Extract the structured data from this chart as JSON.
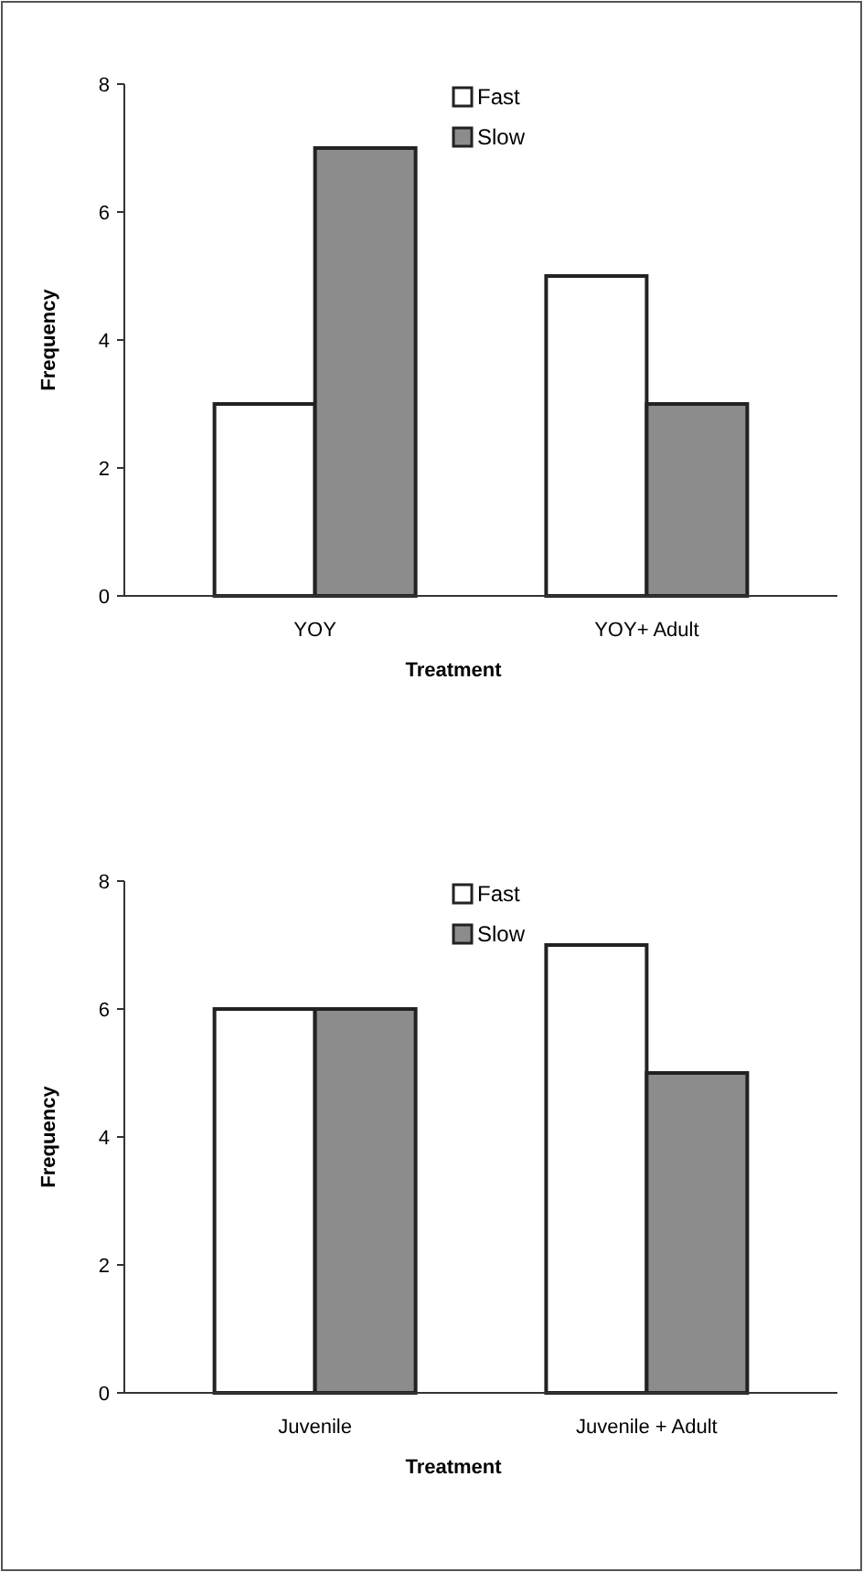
{
  "chart_data": [
    {
      "type": "bar",
      "xlabel": "Treatment",
      "ylabel": "Frequency",
      "categories": [
        "YOY",
        "YOY+ Adult"
      ],
      "series": [
        {
          "name": "Fast",
          "color": "#ffffff",
          "values": [
            3,
            5
          ]
        },
        {
          "name": "Slow",
          "color": "#8c8c8c",
          "values": [
            7,
            3
          ]
        }
      ],
      "ylim": [
        0,
        8
      ],
      "yticks": [
        0,
        2,
        4,
        6,
        8
      ],
      "grid": false,
      "legend": "top"
    },
    {
      "type": "bar",
      "xlabel": "Treatment",
      "ylabel": "Frequency",
      "categories": [
        "Juvenile",
        "Juvenile + Adult"
      ],
      "series": [
        {
          "name": "Fast",
          "color": "#ffffff",
          "values": [
            6,
            7
          ]
        },
        {
          "name": "Slow",
          "color": "#8c8c8c",
          "values": [
            6,
            5
          ]
        }
      ],
      "ylim": [
        0,
        8
      ],
      "yticks": [
        0,
        2,
        4,
        6,
        8
      ],
      "grid": false,
      "legend": "top"
    }
  ]
}
